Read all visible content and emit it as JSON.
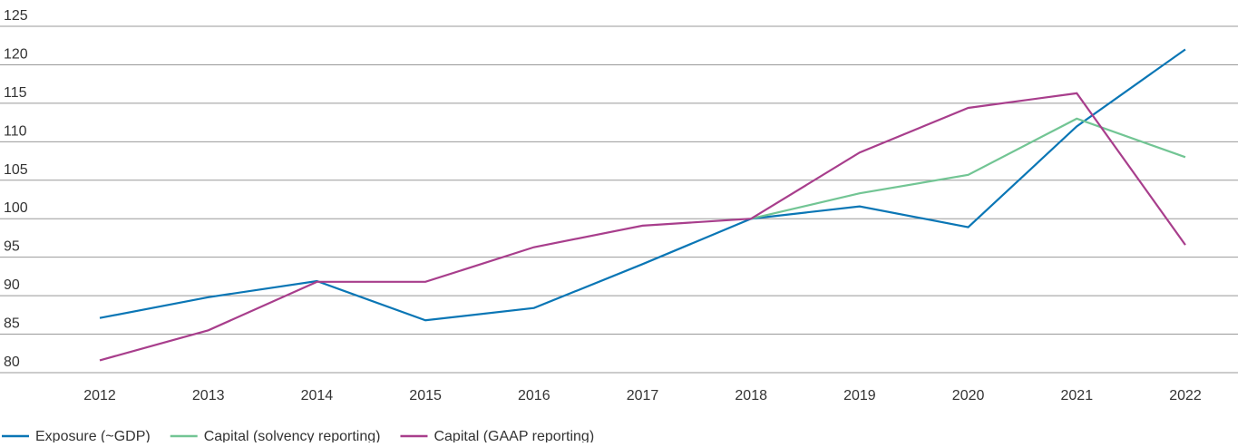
{
  "chart_data": {
    "type": "line",
    "x": [
      2012,
      2013,
      2014,
      2015,
      2016,
      2017,
      2018,
      2019,
      2020,
      2021,
      2022
    ],
    "xlim": [
      2011.45,
      2022.5
    ],
    "xticks": [
      2012,
      2013,
      2014,
      2015,
      2016,
      2017,
      2018,
      2019,
      2020,
      2021,
      2022
    ],
    "ylim": [
      80,
      125
    ],
    "yticks": [
      80,
      85,
      90,
      95,
      100,
      105,
      110,
      115,
      120,
      125
    ],
    "grid": true,
    "legend": "bottom-left",
    "series": [
      {
        "name": "Exposure (~GDP)",
        "color": "#0a76b5",
        "values": [
          87.1,
          89.8,
          91.9,
          86.8,
          88.4,
          94.1,
          100,
          101.6,
          98.9,
          112,
          122
        ]
      },
      {
        "name": "Capital (solvency reporting)",
        "color": "#72c594",
        "values": [
          null,
          null,
          null,
          null,
          null,
          null,
          100,
          103.3,
          105.7,
          113,
          108
        ]
      },
      {
        "name": "Capital (GAAP reporting)",
        "color": "#a83e8c",
        "values": [
          81.6,
          85.5,
          91.8,
          91.8,
          96.3,
          99.1,
          100,
          108.6,
          114.4,
          116.3,
          96.6
        ]
      }
    ]
  }
}
